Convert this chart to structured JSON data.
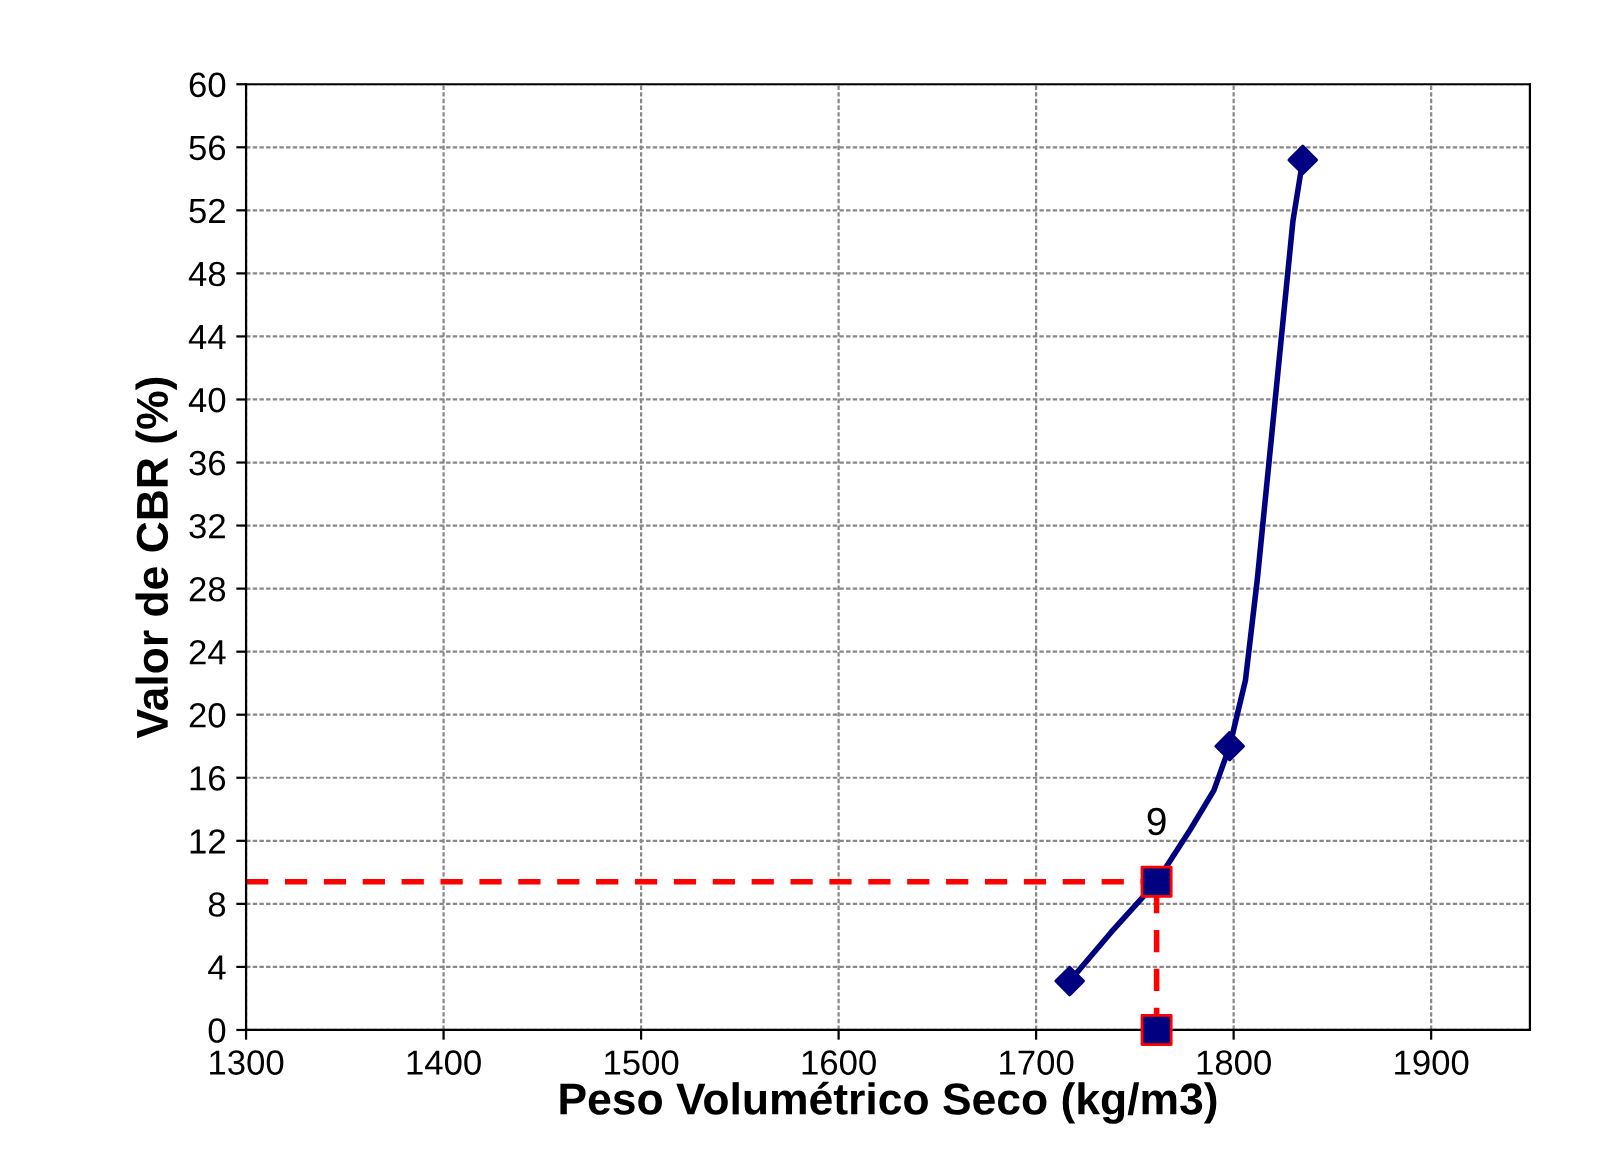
{
  "chart_data": {
    "type": "line",
    "xlabel": "Peso Volumétrico Seco (kg/m3)",
    "ylabel": "Valor de CBR (%)",
    "xlim": [
      1300,
      1950
    ],
    "xticks": [
      1300,
      1400,
      1500,
      1600,
      1700,
      1800,
      1900
    ],
    "ylim": [
      0,
      60
    ],
    "yticks": [
      0,
      4,
      8,
      12,
      16,
      20,
      24,
      28,
      32,
      36,
      40,
      44,
      48,
      52,
      56,
      60
    ],
    "grid": true,
    "series": [
      {
        "color": "#000080",
        "line_style": "solid",
        "x": [
          1717,
          1738,
          1761,
          1778,
          1790,
          1798,
          1806,
          1812,
          1819,
          1825,
          1830,
          1835
        ],
        "values": [
          3.1,
          6.2,
          9.4,
          12.7,
          15.2,
          18.0,
          22.2,
          28.6,
          37.4,
          45.0,
          51.3,
          55.2
        ]
      },
      {
        "type": "scatter",
        "color": "#000080",
        "marker": "diamond",
        "x": [
          1717,
          1798,
          1835
        ],
        "values": [
          3.1,
          18.0,
          55.2
        ]
      },
      {
        "color": "#ff0000",
        "line_style": "dashed",
        "x": [
          1300,
          1761
        ],
        "values": [
          9.4,
          9.4
        ]
      },
      {
        "color": "#ff0000",
        "line_style": "dashed",
        "x": [
          1761,
          1761
        ],
        "values": [
          0,
          9.4
        ]
      },
      {
        "type": "scatter",
        "color": "#000080",
        "marker": "square",
        "x": [
          1761,
          1761
        ],
        "values": [
          9.4,
          0
        ],
        "value_labels": [
          "9",
          null
        ]
      }
    ]
  }
}
